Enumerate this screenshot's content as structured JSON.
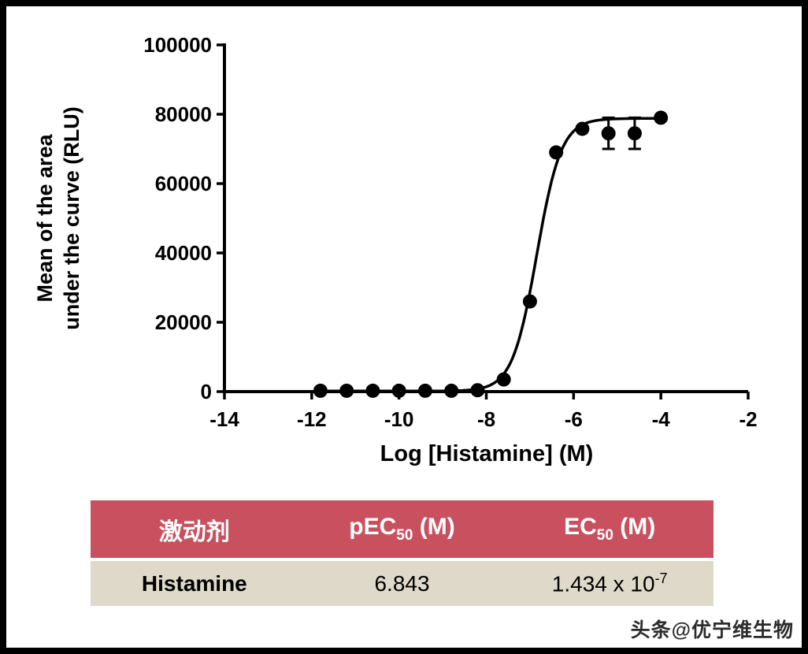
{
  "chart_data": {
    "type": "scatter",
    "title": "",
    "xlabel": "Log [Histamine] (M)",
    "ylabel": "Mean of the area under the curve (RLU)",
    "ylabel_lines": [
      "Mean of the area",
      "under the curve (RLU)"
    ],
    "xlim": [
      -14,
      -2
    ],
    "ylim": [
      0,
      100000
    ],
    "x_ticks": [
      -14,
      -12,
      -10,
      -8,
      -6,
      -4,
      -2
    ],
    "y_ticks": [
      0,
      20000,
      40000,
      60000,
      80000,
      100000
    ],
    "grid": false,
    "point_color": "#000000",
    "curve_color": "#000000",
    "points": [
      {
        "x": -11.8,
        "y": 250
      },
      {
        "x": -11.2,
        "y": 250
      },
      {
        "x": -10.6,
        "y": 250
      },
      {
        "x": -10.0,
        "y": 250
      },
      {
        "x": -9.4,
        "y": 250
      },
      {
        "x": -8.8,
        "y": 250
      },
      {
        "x": -8.2,
        "y": 400
      },
      {
        "x": -7.6,
        "y": 3500
      },
      {
        "x": -7.0,
        "y": 26000
      },
      {
        "x": -6.4,
        "y": 69000
      },
      {
        "x": -5.8,
        "y": 75800
      },
      {
        "x": -5.2,
        "y": 74500,
        "err": 4500
      },
      {
        "x": -4.6,
        "y": 74500,
        "err": 4500
      },
      {
        "x": -4.0,
        "y": 79000
      }
    ],
    "fit": {
      "model": "sigmoidal dose-response",
      "bottom": 150,
      "top": 78800,
      "logEC50": -6.843,
      "hill": 1.55,
      "curve_range": [
        -11.85,
        -3.95
      ]
    }
  },
  "table": {
    "header_bg": "#c9515f",
    "row_bg": "#ded9c8",
    "header": {
      "col1": "激动剂",
      "col2_prefix": "pEC",
      "col2_sub": "50",
      "col2_suffix": " (M)",
      "col3_prefix": "EC",
      "col3_sub": "50",
      "col3_suffix": " (M)"
    },
    "row": {
      "agonist": "Histamine",
      "pec50": "6.843",
      "ec50_base": "1.434 x 10",
      "ec50_exp": "-7"
    }
  },
  "watermark": "头条@优宁维生物"
}
